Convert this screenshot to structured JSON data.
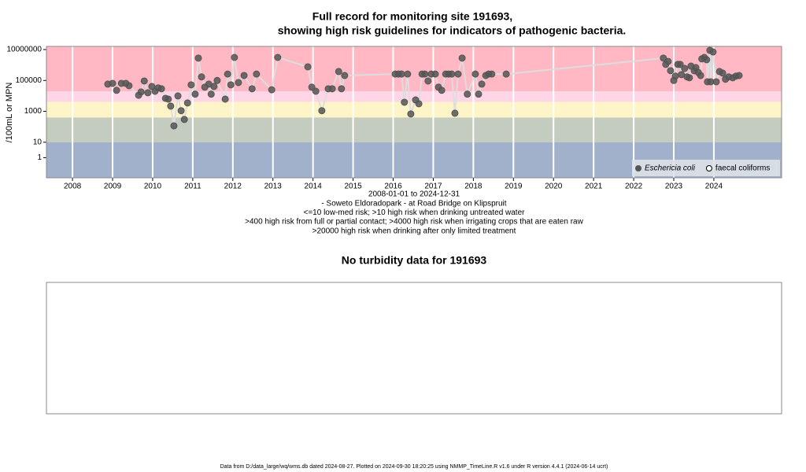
{
  "chart_data": [
    {
      "type": "scatter",
      "title": [
        "Full record for monitoring site 191693,",
        "showing high risk guidelines for indicators of pathogenic bacteria."
      ],
      "ylabel": "/100mL or MPN",
      "caption": [
        "2008-01-01 to 2024-12-31",
        "- Soweto Eldoradopark - at Road Bridge on Klipspruit",
        "<=10 low-med risk; >10 high risk when drinking untreated water",
        ">400 high risk from full or partial contact; >4000 high risk when irrigating crops that are eaten raw",
        ">20000 high risk when drinking after only limited treatment"
      ],
      "log_y": true,
      "xlim": [
        2007.35,
        2025.69
      ],
      "xticks": [
        2008,
        2009,
        2010,
        2011,
        2012,
        2013,
        2014,
        2015,
        2016,
        2017,
        2018,
        2019,
        2020,
        2021,
        2022,
        2023,
        2024
      ],
      "ylim": [
        0.05,
        16000000
      ],
      "yticks": [
        1,
        10,
        1000,
        100000,
        10000000
      ],
      "grid": true,
      "legend": "lower right",
      "bands": [
        {
          "above": 20000,
          "color": "#ffb8c4"
        },
        {
          "above": 4000,
          "color": "#ffd6e6"
        },
        {
          "above": 400,
          "color": "#fdf5c8"
        },
        {
          "above": 10,
          "color": "#c4ccc0"
        },
        {
          "color": "#a2b1cb"
        }
      ],
      "line_color": "#dddddd",
      "series": [
        {
          "name": "Eschericia coli",
          "color": "#555555",
          "filled": true,
          "x": [
            2008.88,
            2009.0,
            2009.1,
            2009.22,
            2009.33,
            2009.41,
            2009.65,
            2009.71,
            2009.79,
            2009.88,
            2009.98,
            2010.06,
            2010.14,
            2010.22,
            2010.32,
            2010.39,
            2010.45,
            2010.53,
            2010.63,
            2010.71,
            2010.79,
            2010.87,
            2010.96,
            2011.06,
            2011.14,
            2011.22,
            2011.3,
            2011.4,
            2011.46,
            2011.53,
            2011.61,
            2011.81,
            2011.87,
            2011.95,
            2012.04,
            2012.14,
            2012.28,
            2012.48,
            2012.59,
            2012.97,
            2013.12,
            2013.87,
            2013.97,
            2014.07,
            2014.22,
            2014.38,
            2014.48,
            2014.64,
            2014.71,
            2014.79,
            2016.05,
            2016.13,
            2016.21,
            2016.28,
            2016.36,
            2016.44,
            2016.56,
            2016.64,
            2016.72,
            2016.79,
            2016.87,
            2016.95,
            2017.05,
            2017.13,
            2017.21,
            2017.31,
            2017.38,
            2017.46,
            2017.54,
            2017.62,
            2017.72,
            2017.85,
            2018.05,
            2018.13,
            2018.21,
            2018.31,
            2018.38,
            2018.46,
            2018.82,
            2022.74,
            2022.8,
            2022.86,
            2022.92,
            2023.0,
            2023.04,
            2023.1,
            2023.16,
            2023.19,
            2023.27,
            2023.33,
            2023.39,
            2023.43,
            2023.51,
            2023.55,
            2023.61,
            2023.67,
            2023.7,
            2023.76,
            2023.82,
            2023.84,
            2023.9,
            2023.92,
            2023.98,
            2024.06,
            2024.14,
            2024.22,
            2024.29,
            2024.37,
            2024.47,
            2024.55,
            2024.63
          ],
          "values": [
            58000,
            65000,
            23000,
            65000,
            65000,
            46000,
            11000,
            18000,
            92000,
            16000,
            41000,
            20000,
            33000,
            29000,
            7000,
            6200,
            2200,
            115,
            10000,
            1100,
            300,
            3500,
            52000,
            13000,
            2800000,
            170000,
            37000,
            58000,
            13000,
            41000,
            100000,
            6200,
            260000,
            52000,
            3100000,
            73000,
            210000,
            29000,
            260000,
            25000,
            3100000,
            760000,
            37000,
            20000,
            1100,
            29000,
            29000,
            380000,
            29000,
            210000,
            260000,
            260000,
            260000,
            3900,
            260000,
            680,
            5500,
            3100,
            260000,
            260000,
            92000,
            260000,
            260000,
            37000,
            23000,
            260000,
            260000,
            260000,
            760,
            260000,
            2800000,
            13000,
            260000,
            13000,
            58000,
            210000,
            260000,
            260000,
            260000,
            2800000,
            1100000,
            1700000,
            430000,
            100000,
            190000,
            1100000,
            1100000,
            240000,
            600000,
            170000,
            150000,
            850000,
            430000,
            680000,
            330000,
            210000,
            2500000,
            3100000,
            2200000,
            82000,
            8900000,
            82000,
            7000000,
            82000,
            380000,
            300000,
            120000,
            170000,
            150000,
            190000,
            210000
          ]
        },
        {
          "name": "faecal coliforms",
          "color": "#555555",
          "filled": false,
          "x": [],
          "values": []
        }
      ]
    },
    {
      "type": "empty",
      "title": "No turbidity data for 191693"
    }
  ],
  "footer": "Data from D:/data_large/wq/wms.db dated 2024-08-27. Plotted on 2024-09-30 18:20:25 using NMMP_TimeLine.R v1.6 under R version 4.4.1 (2024-06-14 ucrt)"
}
